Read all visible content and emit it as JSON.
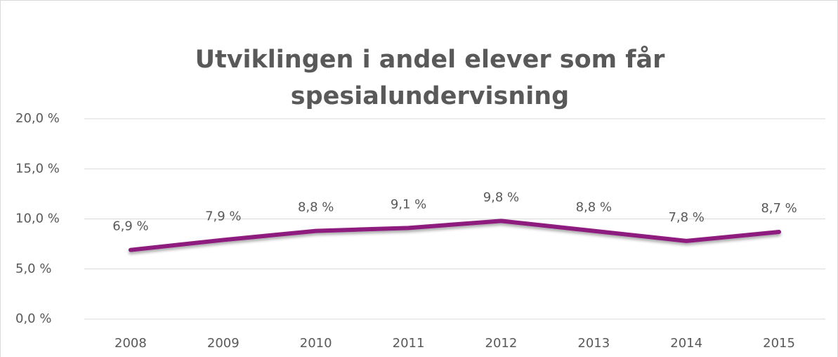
{
  "chart_data": {
    "type": "line",
    "title_lines": [
      "Utviklingen i andel elever som får",
      "spesialundervisning"
    ],
    "categories": [
      "2008",
      "2009",
      "2010",
      "2011",
      "2012",
      "2013",
      "2014",
      "2015"
    ],
    "values": [
      6.9,
      7.9,
      8.8,
      9.1,
      9.8,
      8.8,
      7.8,
      8.7
    ],
    "value_labels": [
      "6,9 %",
      "7,9 %",
      "8,8 %",
      "9,1 %",
      "9,8 %",
      "8,8 %",
      "7,8 %",
      "8,7 %"
    ],
    "color": "#8e1a7e",
    "ylim": [
      0,
      20
    ],
    "yticks": [
      {
        "value": 0,
        "label": "0,0 %"
      },
      {
        "value": 5,
        "label": "5,0 %"
      },
      {
        "value": 10,
        "label": "10,0 %"
      },
      {
        "value": 15,
        "label": "15,0 %"
      },
      {
        "value": 20,
        "label": "20,0 %"
      }
    ],
    "grid": true
  }
}
